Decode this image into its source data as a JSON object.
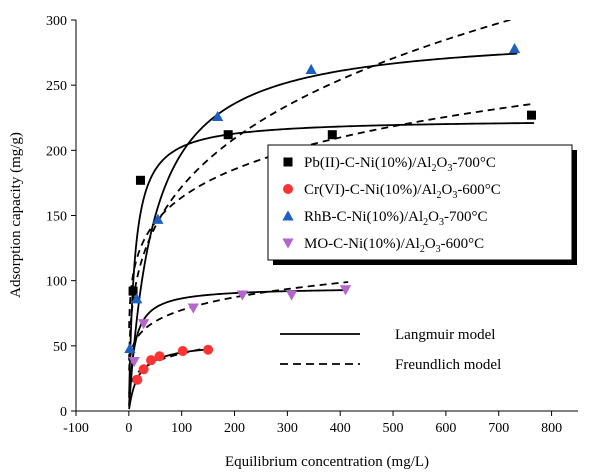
{
  "chart_data": {
    "type": "scatter",
    "xlabel": "Equilibrium concentration (mg/L)",
    "ylabel": "Adsorption capacity (mg/g)",
    "xlim": [
      -100,
      850
    ],
    "ylim": [
      0,
      300
    ],
    "xticks": [
      -100,
      0,
      100,
      200,
      300,
      400,
      500,
      600,
      700,
      800
    ],
    "yticks": [
      0,
      50,
      100,
      150,
      200,
      250,
      300
    ],
    "grid": false,
    "legend_placement": "center-right",
    "series": [
      {
        "name": "Pb(II)-C-Ni(10%)/Al2O3-700°C",
        "marker": "square",
        "color": "#000000",
        "x": [
          8,
          22,
          188,
          385,
          762
        ],
        "y": [
          92,
          177,
          212,
          212,
          227
        ],
        "langmuir": {
          "qm": 224,
          "kl": 0.095
        },
        "freundlich": {
          "kf": 72,
          "n": 5.6
        }
      },
      {
        "name": "Cr(VI)-C-Ni(10%)/Al2O3-600°C",
        "marker": "circle",
        "color": "#ff3333",
        "x": [
          16,
          28,
          42,
          58,
          102,
          150
        ],
        "y": [
          24,
          32,
          39,
          42,
          46,
          47
        ],
        "langmuir": {
          "qm": 53,
          "kl": 0.055
        },
        "freundlich": {
          "kf": 15.5,
          "n": 4.4
        }
      },
      {
        "name": "RhB-C-Ni(10%)/Al2O3-700°C",
        "marker": "triangle-up",
        "color": "#1f5fbf",
        "x": [
          2,
          15,
          55,
          168,
          345,
          730
        ],
        "y": [
          48,
          86,
          147,
          226,
          262,
          278
        ],
        "langmuir": {
          "qm": 292,
          "kl": 0.021
        },
        "freundlich": {
          "kf": 47,
          "n": 3.55
        }
      },
      {
        "name": "MO-C-Ni(10%)/Al2O3-600°C",
        "marker": "triangle-down",
        "color": "#b366cc",
        "x": [
          10,
          28,
          122,
          215,
          308,
          410
        ],
        "y": [
          38,
          67,
          79,
          89,
          89,
          93
        ],
        "langmuir": {
          "qm": 95,
          "kl": 0.1
        },
        "freundlich": {
          "kf": 35,
          "n": 5.8
        }
      }
    ],
    "legend_items": [
      {
        "base": "Pb(II)-C-Ni(10%)/Al",
        "sub1": "2",
        "mid": "O",
        "sub2": "3",
        "tail": "-700°C"
      },
      {
        "base": "Cr(VI)-C-Ni(10%)/Al",
        "sub1": "2",
        "mid": "O",
        "sub2": "3",
        "tail": "-600°C"
      },
      {
        "base": "RhB-C-Ni(10%)/Al",
        "sub1": "2",
        "mid": "O",
        "sub2": "3",
        "tail": "-700°C"
      },
      {
        "base": "MO-C-Ni(10%)/Al",
        "sub1": "2",
        "mid": "O",
        "sub2": "3",
        "tail": "-600°C"
      }
    ],
    "models": [
      {
        "name": "Langmuir model",
        "style": "solid"
      },
      {
        "name": "Freundlich model",
        "style": "dashed"
      }
    ]
  }
}
